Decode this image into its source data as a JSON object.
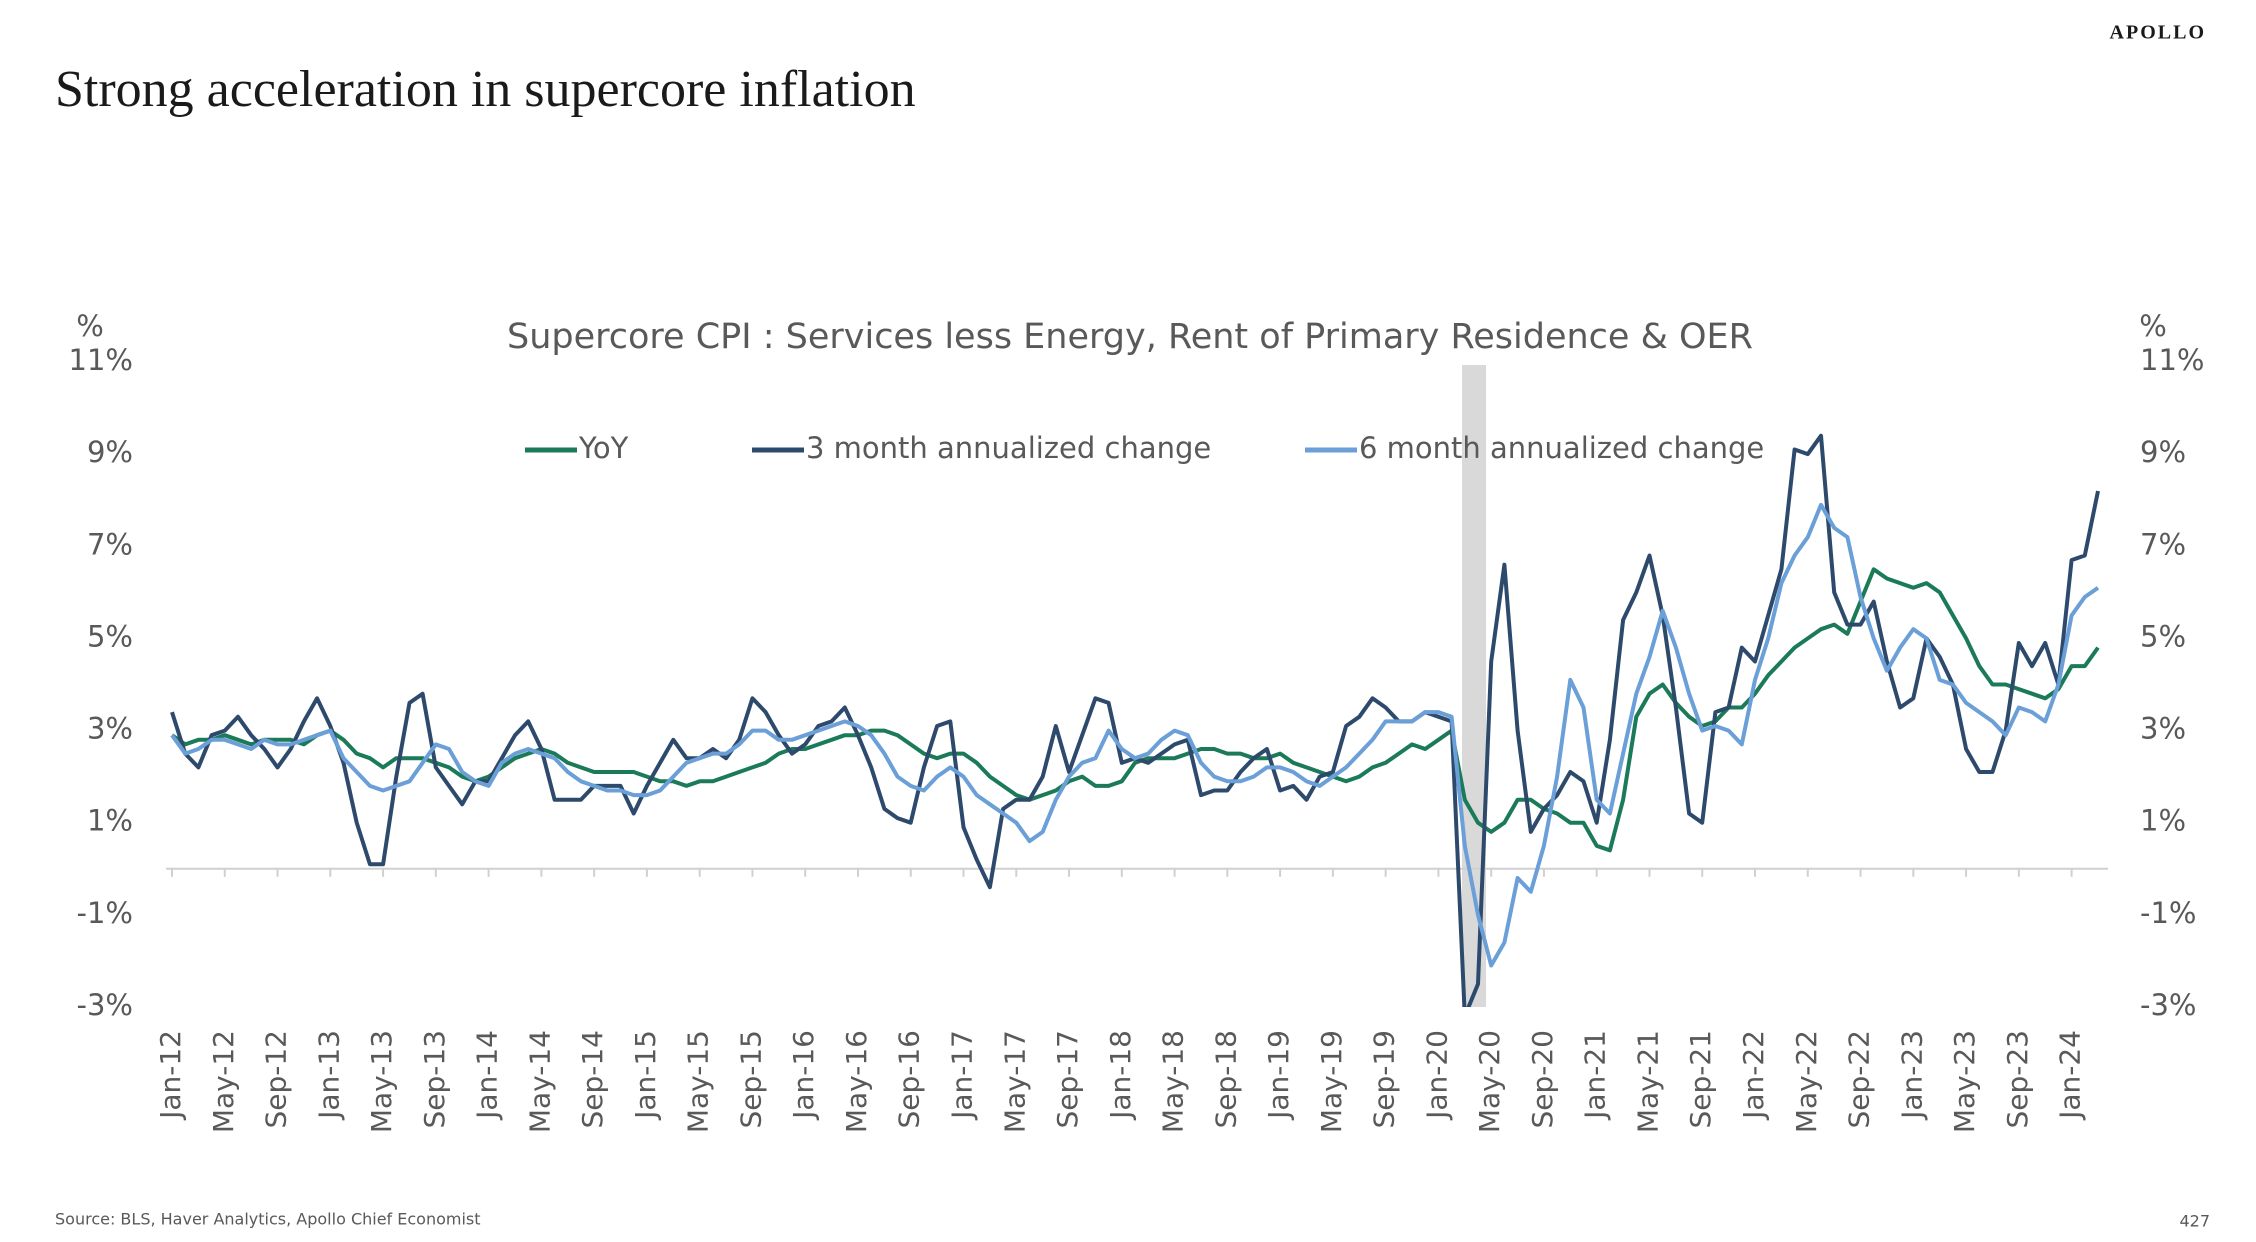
{
  "brand": "APOLLO",
  "page_title": "Strong acceleration in supercore inflation",
  "source": "Source: BLS, Haver Analytics, Apollo Chief Economist",
  "page_number": "427",
  "chart_data": {
    "type": "line",
    "title": "Supercore CPI : Services less Energy, Rent of Primary Residence & OER",
    "y_unit": "%",
    "categories": [
      "Jan-12",
      null,
      null,
      null,
      "May-12",
      null,
      null,
      null,
      "Sep-12",
      null,
      null,
      null,
      "Jan-13",
      null,
      null,
      null,
      "May-13",
      null,
      null,
      null,
      "Sep-13",
      null,
      null,
      null,
      "Jan-14",
      null,
      null,
      null,
      "May-14",
      null,
      null,
      null,
      "Sep-14",
      null,
      null,
      null,
      "Jan-15",
      null,
      null,
      null,
      "May-15",
      null,
      null,
      null,
      "Sep-15",
      null,
      null,
      null,
      "Jan-16",
      null,
      null,
      null,
      "May-16",
      null,
      null,
      null,
      "Sep-16",
      null,
      null,
      null,
      "Jan-17",
      null,
      null,
      null,
      "May-17",
      null,
      null,
      null,
      "Sep-17",
      null,
      null,
      null,
      "Jan-18",
      null,
      null,
      null,
      "May-18",
      null,
      null,
      null,
      "Sep-18",
      null,
      null,
      null,
      "Jan-19",
      null,
      null,
      null,
      "May-19",
      null,
      null,
      null,
      "Sep-19",
      null,
      null,
      null,
      "Jan-20",
      null,
      null,
      null,
      "May-20",
      null,
      null,
      null,
      "Sep-20",
      null,
      null,
      null,
      "Jan-21",
      null,
      null,
      null,
      "May-21",
      null,
      null,
      null,
      "Sep-21",
      null,
      null,
      null,
      "Jan-22",
      null,
      null,
      null,
      "May-22",
      null,
      null,
      null,
      "Sep-22",
      null,
      null,
      null,
      "Jan-23",
      null,
      null,
      null,
      "May-23",
      null,
      null,
      null,
      "Sep-23",
      null,
      null,
      null,
      "Jan-24",
      null,
      null
    ],
    "series": [
      {
        "name": "YoY",
        "color": "#1b7a58",
        "values": [
          2.9,
          2.7,
          2.8,
          2.8,
          2.9,
          2.8,
          2.7,
          2.8,
          2.8,
          2.8,
          2.7,
          2.9,
          3.0,
          2.8,
          2.5,
          2.4,
          2.2,
          2.4,
          2.4,
          2.4,
          2.3,
          2.2,
          2.0,
          1.9,
          2.0,
          2.2,
          2.4,
          2.5,
          2.6,
          2.5,
          2.3,
          2.2,
          2.1,
          2.1,
          2.1,
          2.1,
          2.0,
          1.9,
          1.9,
          1.8,
          1.9,
          1.9,
          2.0,
          2.1,
          2.2,
          2.3,
          2.5,
          2.6,
          2.6,
          2.7,
          2.8,
          2.9,
          2.9,
          3.0,
          3.0,
          2.9,
          2.7,
          2.5,
          2.4,
          2.5,
          2.5,
          2.3,
          2.0,
          1.8,
          1.6,
          1.5,
          1.6,
          1.7,
          1.9,
          2.0,
          1.8,
          1.8,
          1.9,
          2.3,
          2.4,
          2.4,
          2.4,
          2.5,
          2.6,
          2.6,
          2.5,
          2.5,
          2.4,
          2.4,
          2.5,
          2.3,
          2.2,
          2.1,
          2.0,
          1.9,
          2.0,
          2.2,
          2.3,
          2.5,
          2.7,
          2.6,
          2.8,
          3.0,
          1.5,
          1.0,
          0.8,
          1.0,
          1.5,
          1.5,
          1.3,
          1.2,
          1.0,
          1.0,
          0.5,
          0.4,
          1.5,
          3.3,
          3.8,
          4.0,
          3.6,
          3.3,
          3.1,
          3.2,
          3.5,
          3.5,
          3.8,
          4.2,
          4.5,
          4.8,
          5.0,
          5.2,
          5.3,
          5.1,
          5.8,
          6.5,
          6.3,
          6.2,
          6.1,
          6.2,
          6.0,
          5.5,
          5.0,
          4.4,
          4.0,
          4.0,
          3.9,
          3.8,
          3.7,
          3.9,
          4.4,
          4.4,
          4.8
        ]
      },
      {
        "name": "3 month annualized change",
        "color": "#2d4a6d",
        "values": [
          3.4,
          2.5,
          2.2,
          2.9,
          3.0,
          3.3,
          2.9,
          2.6,
          2.2,
          2.6,
          3.2,
          3.7,
          3.1,
          2.3,
          1.0,
          0.1,
          0.1,
          2.0,
          3.6,
          3.8,
          2.2,
          1.8,
          1.4,
          1.9,
          1.9,
          2.4,
          2.9,
          3.2,
          2.6,
          1.5,
          1.5,
          1.5,
          1.8,
          1.8,
          1.8,
          1.2,
          1.8,
          2.3,
          2.8,
          2.4,
          2.4,
          2.6,
          2.4,
          2.8,
          3.7,
          3.4,
          2.9,
          2.5,
          2.7,
          3.1,
          3.2,
          3.5,
          2.9,
          2.2,
          1.3,
          1.1,
          1.0,
          2.2,
          3.1,
          3.2,
          0.9,
          0.2,
          -0.4,
          1.3,
          1.5,
          1.5,
          2.0,
          3.1,
          2.1,
          2.9,
          3.7,
          3.6,
          2.3,
          2.4,
          2.3,
          2.5,
          2.7,
          2.8,
          1.6,
          1.7,
          1.7,
          2.1,
          2.4,
          2.6,
          1.7,
          1.8,
          1.5,
          2.0,
          2.1,
          3.1,
          3.3,
          3.7,
          3.5,
          3.2,
          3.2,
          3.4,
          3.3,
          3.2,
          -3.2,
          -2.5,
          4.5,
          6.6,
          3.0,
          0.8,
          1.3,
          1.6,
          2.1,
          1.9,
          1.0,
          2.8,
          5.4,
          6.0,
          6.8,
          5.5,
          3.5,
          1.2,
          1.0,
          3.4,
          3.5,
          4.8,
          4.5,
          5.5,
          6.5,
          9.1,
          9.0,
          9.4,
          6.0,
          5.3,
          5.3,
          5.8,
          4.5,
          3.5,
          3.7,
          5.0,
          4.6,
          4.0,
          2.6,
          2.1,
          2.1,
          3.0,
          4.9,
          4.4,
          4.9,
          4.0,
          6.7,
          6.8,
          8.2
        ]
      },
      {
        "name": "6 month annualized change",
        "color": "#6a9fd8",
        "values": [
          2.9,
          2.5,
          2.6,
          2.8,
          2.8,
          2.7,
          2.6,
          2.8,
          2.7,
          2.7,
          2.8,
          2.9,
          3.0,
          2.4,
          2.1,
          1.8,
          1.7,
          1.8,
          1.9,
          2.3,
          2.7,
          2.6,
          2.1,
          1.9,
          1.8,
          2.3,
          2.5,
          2.6,
          2.5,
          2.4,
          2.1,
          1.9,
          1.8,
          1.7,
          1.7,
          1.6,
          1.6,
          1.7,
          2.0,
          2.3,
          2.4,
          2.5,
          2.5,
          2.7,
          3.0,
          3.0,
          2.8,
          2.8,
          2.9,
          3.0,
          3.1,
          3.2,
          3.1,
          2.9,
          2.5,
          2.0,
          1.8,
          1.7,
          2.0,
          2.2,
          2.0,
          1.6,
          1.4,
          1.2,
          1.0,
          0.6,
          0.8,
          1.5,
          2.0,
          2.3,
          2.4,
          3.0,
          2.6,
          2.4,
          2.5,
          2.8,
          3.0,
          2.9,
          2.3,
          2.0,
          1.9,
          1.9,
          2.0,
          2.2,
          2.2,
          2.1,
          1.9,
          1.8,
          2.0,
          2.2,
          2.5,
          2.8,
          3.2,
          3.2,
          3.2,
          3.4,
          3.4,
          3.3,
          0.5,
          -1.0,
          -2.1,
          -1.6,
          -0.2,
          -0.5,
          0.5,
          2.0,
          4.1,
          3.5,
          1.5,
          1.2,
          2.5,
          3.8,
          4.6,
          5.6,
          4.8,
          3.8,
          3.0,
          3.1,
          3.0,
          2.7,
          4.1,
          5.0,
          6.2,
          6.8,
          7.2,
          7.9,
          7.4,
          7.2,
          5.9,
          5.0,
          4.3,
          4.8,
          5.2,
          5.0,
          4.1,
          4.0,
          3.6,
          3.4,
          3.2,
          2.9,
          3.5,
          3.4,
          3.2,
          4.0,
          5.5,
          5.9,
          6.1
        ]
      }
    ],
    "ylim": [
      -3,
      11
    ],
    "yticks": [
      {
        "value": -3,
        "label": "-3%"
      },
      {
        "value": -1,
        "label": "-1%"
      },
      {
        "value": 1,
        "label": "1%"
      },
      {
        "value": 3,
        "label": "3%"
      },
      {
        "value": 5,
        "label": "5%"
      },
      {
        "value": 7,
        "label": "7%"
      },
      {
        "value": 9,
        "label": "9%"
      },
      {
        "value": 11,
        "label": "11%"
      }
    ],
    "grid": false
  }
}
